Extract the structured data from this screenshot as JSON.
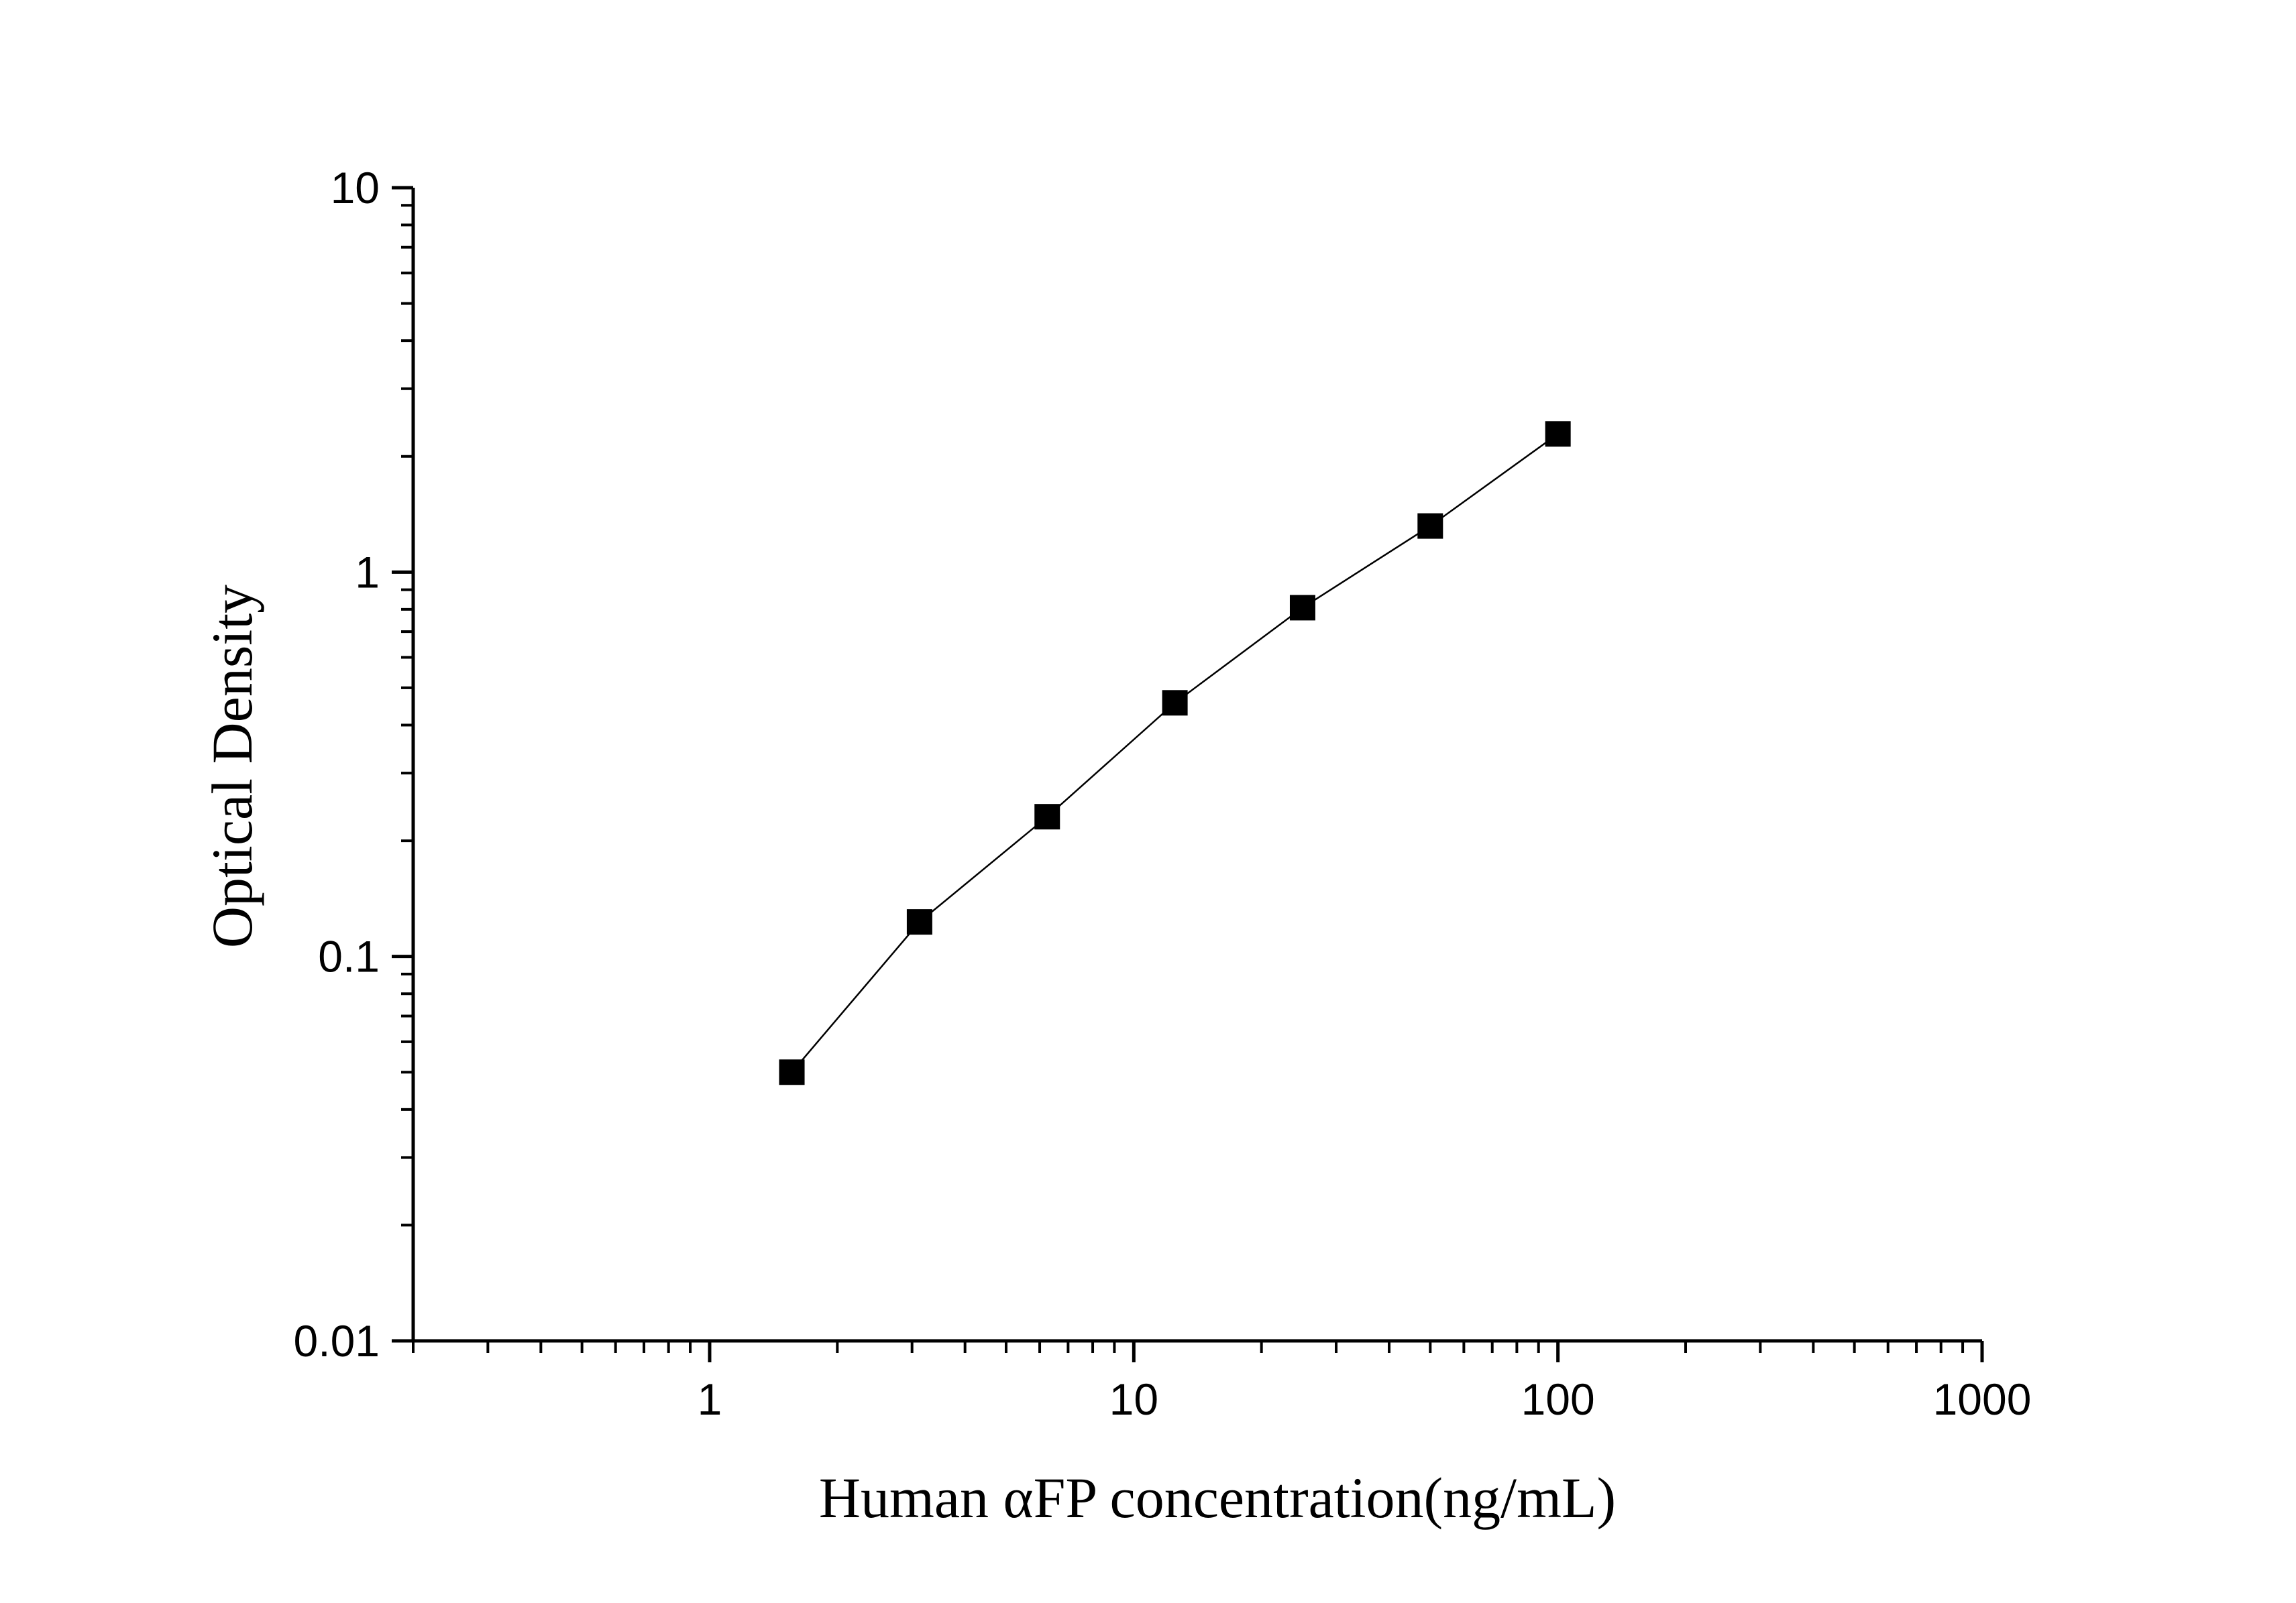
{
  "chart_data": {
    "type": "line",
    "title": "",
    "xlabel": "Human αFP concentration(ng/mL)",
    "ylabel": "Optical Density",
    "x_scale": "log",
    "y_scale": "log",
    "xlim": [
      0.2,
      1000
    ],
    "ylim": [
      0.01,
      10
    ],
    "x_ticks": [
      {
        "value": 1,
        "label": "1"
      },
      {
        "value": 10,
        "label": "10"
      },
      {
        "value": 100,
        "label": "100"
      },
      {
        "value": 1000,
        "label": "1000"
      }
    ],
    "y_ticks": [
      {
        "value": 0.01,
        "label": "0.01"
      },
      {
        "value": 0.1,
        "label": "0.1"
      },
      {
        "value": 1,
        "label": "1"
      },
      {
        "value": 10,
        "label": "10"
      }
    ],
    "grid": false,
    "legend": "none",
    "marker": "square",
    "color": "#000000",
    "series": [
      {
        "x": [
          1.5625,
          3.125,
          6.25,
          12.5,
          25,
          50,
          100
        ],
        "y": [
          0.05,
          0.123,
          0.231,
          0.457,
          0.808,
          1.318,
          2.288
        ]
      }
    ]
  }
}
